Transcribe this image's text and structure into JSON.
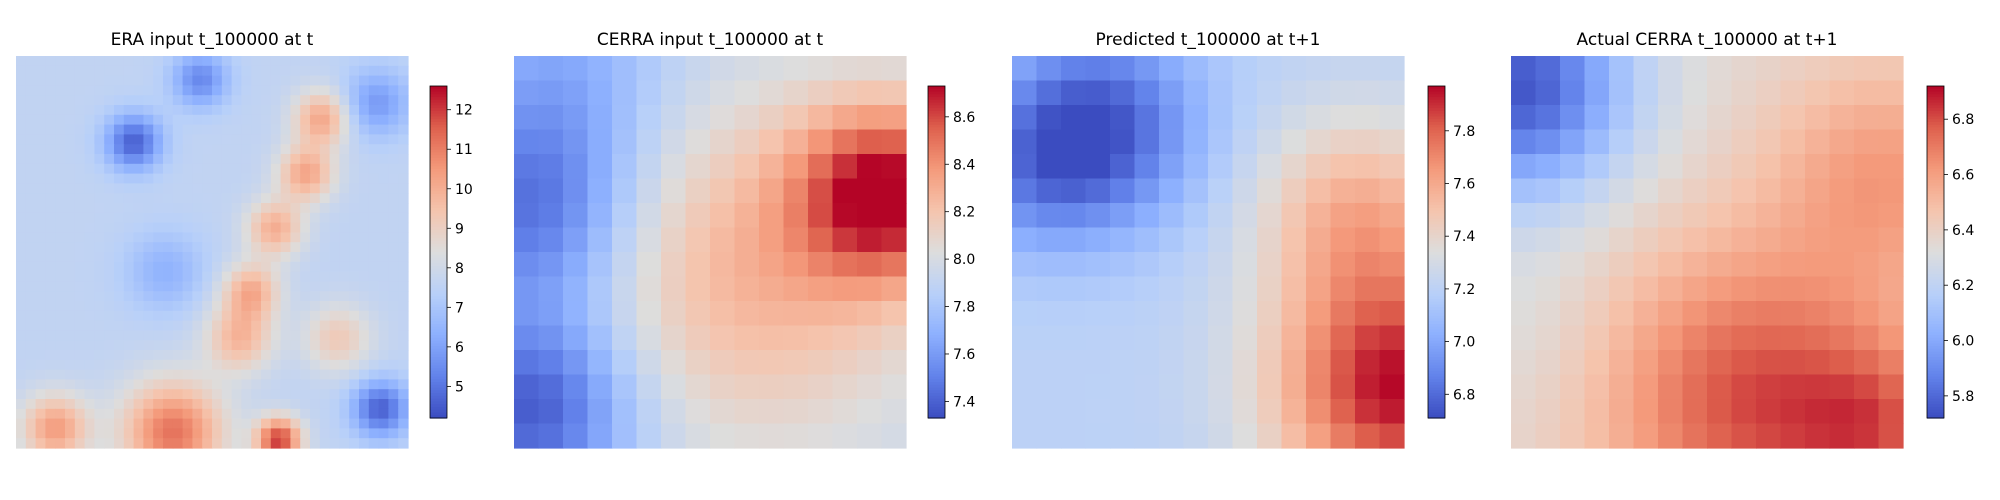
{
  "chart_data": [
    {
      "type": "heatmap",
      "title": "ERA input t_100000 at t",
      "colormap": "coolwarm",
      "vmin": 4.2,
      "vmax": 12.6,
      "colorbar_ticks": [
        5,
        6,
        7,
        8,
        9,
        10,
        11,
        12
      ],
      "grid_size": [
        40,
        40
      ],
      "field": {
        "base": 7.6,
        "blobs": [
          {
            "x": 0.78,
            "y": 0.16,
            "s": 0.05,
            "a": 2.6
          },
          {
            "x": 0.74,
            "y": 0.3,
            "s": 0.05,
            "a": 2.6
          },
          {
            "x": 0.66,
            "y": 0.44,
            "s": 0.05,
            "a": 2.4
          },
          {
            "x": 0.6,
            "y": 0.6,
            "s": 0.05,
            "a": 2.4
          },
          {
            "x": 0.57,
            "y": 0.72,
            "s": 0.06,
            "a": 2.2
          },
          {
            "x": 0.82,
            "y": 0.72,
            "s": 0.06,
            "a": 1.6
          },
          {
            "x": 0.1,
            "y": 0.95,
            "s": 0.06,
            "a": 2.8
          },
          {
            "x": 0.4,
            "y": 0.96,
            "s": 0.09,
            "a": 3.6
          },
          {
            "x": 0.67,
            "y": 0.98,
            "s": 0.04,
            "a": 4.4
          },
          {
            "x": 0.3,
            "y": 0.22,
            "s": 0.05,
            "a": -3.0
          },
          {
            "x": 0.47,
            "y": 0.06,
            "s": 0.05,
            "a": -2.2
          },
          {
            "x": 0.93,
            "y": 0.9,
            "s": 0.05,
            "a": -3.0
          },
          {
            "x": 0.38,
            "y": 0.55,
            "s": 0.07,
            "a": -1.2
          },
          {
            "x": 0.92,
            "y": 0.12,
            "s": 0.06,
            "a": -1.8
          }
        ]
      }
    },
    {
      "type": "heatmap",
      "title": "CERRA input t_100000 at t",
      "colormap": "coolwarm",
      "vmin": 7.33,
      "vmax": 8.73,
      "colorbar_ticks": [
        7.4,
        7.6,
        7.8,
        8.0,
        8.2,
        8.4,
        8.6
      ],
      "grid_size": [
        16,
        16
      ],
      "field": {
        "base": 7.92,
        "blobs": [
          {
            "x": 0.95,
            "y": 0.35,
            "s": 0.16,
            "a": 0.75
          },
          {
            "x": 0.62,
            "y": 0.55,
            "s": 0.3,
            "a": 0.35
          },
          {
            "x": 0.05,
            "y": 0.9,
            "s": 0.18,
            "a": -0.55
          },
          {
            "x": 0.05,
            "y": 0.4,
            "s": 0.18,
            "a": -0.45
          },
          {
            "x": 0.12,
            "y": 0.05,
            "s": 0.2,
            "a": -0.25
          }
        ]
      }
    },
    {
      "type": "heatmap",
      "title": "Predicted t_100000 at t+1",
      "colormap": "coolwarm",
      "vmin": 6.71,
      "vmax": 7.97,
      "colorbar_ticks": [
        6.8,
        7.0,
        7.2,
        7.4,
        7.6,
        7.8
      ],
      "grid_size": [
        16,
        16
      ],
      "field": {
        "base": 7.2,
        "blobs": [
          {
            "x": 0.98,
            "y": 0.85,
            "s": 0.22,
            "a": 0.75
          },
          {
            "x": 0.88,
            "y": 0.4,
            "s": 0.18,
            "a": 0.35
          },
          {
            "x": 0.22,
            "y": 0.18,
            "s": 0.18,
            "a": -0.45
          },
          {
            "x": 0.05,
            "y": 0.3,
            "s": 0.15,
            "a": -0.2
          }
        ]
      }
    },
    {
      "type": "heatmap",
      "title": "Actual CERRA t_100000 at t+1",
      "colormap": "coolwarm",
      "vmin": 5.72,
      "vmax": 6.92,
      "colorbar_ticks": [
        5.8,
        6.0,
        6.2,
        6.4,
        6.6,
        6.8
      ],
      "grid_size": [
        16,
        16
      ],
      "field": {
        "base": 6.35,
        "blobs": [
          {
            "x": 0.62,
            "y": 0.88,
            "s": 0.28,
            "a": 0.45
          },
          {
            "x": 0.95,
            "y": 0.3,
            "s": 0.2,
            "a": 0.25
          },
          {
            "x": 0.95,
            "y": 0.95,
            "s": 0.15,
            "a": 0.25
          },
          {
            "x": 0.02,
            "y": 0.08,
            "s": 0.2,
            "a": -0.6
          },
          {
            "x": 0.05,
            "y": 0.7,
            "s": 0.18,
            "a": -0.05
          }
        ]
      }
    }
  ]
}
